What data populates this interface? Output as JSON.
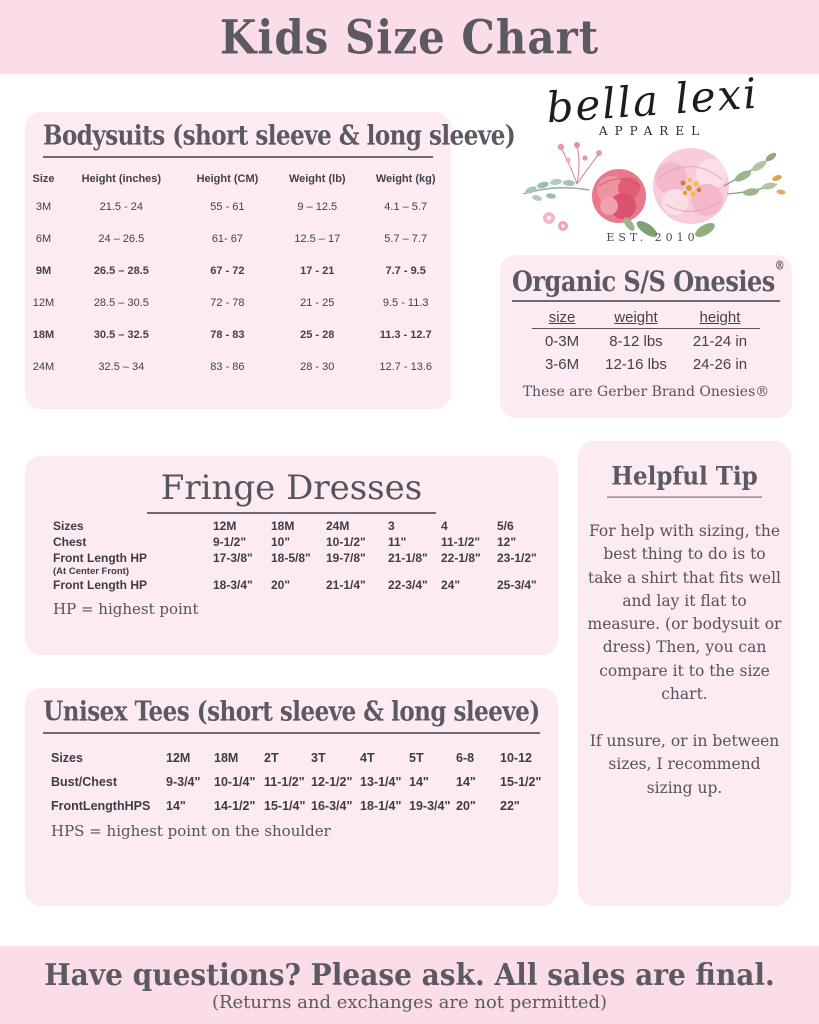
{
  "page": {
    "title": "Kids Size Chart",
    "footer_line1": "Have questions? Please ask. All sales are final.",
    "footer_line2": "(Returns and exchanges are not permitted)"
  },
  "brand": {
    "name": "bella lexi",
    "subtitle": "APPAREL",
    "established": "EST. 2010"
  },
  "colors": {
    "banner_pink": "#fbdde9",
    "panel_pink": "#fcebf2",
    "heading_gray": "#5b5961",
    "table_text": "#434149"
  },
  "bodysuits": {
    "title": "Bodysuits (short sleeve & long sleeve)",
    "headers": [
      "Size",
      "Height (inches)",
      "Height (CM)",
      "Weight (lb)",
      "Weight (kg)"
    ],
    "rows": [
      {
        "cells": [
          "3M",
          "21.5 - 24",
          "55 - 61",
          "9 – 12.5",
          "4.1 – 5.7"
        ],
        "bold": false
      },
      {
        "cells": [
          "6M",
          "24 – 26.5",
          "61- 67",
          "12.5 – 17",
          "5.7 – 7.7"
        ],
        "bold": false
      },
      {
        "cells": [
          "9M",
          "26.5 – 28.5",
          "67 - 72",
          "17 - 21",
          "7.7 - 9.5"
        ],
        "bold": true
      },
      {
        "cells": [
          "12M",
          "28.5 – 30.5",
          "72 - 78",
          "21 - 25",
          "9.5 - 11.3"
        ],
        "bold": false
      },
      {
        "cells": [
          "18M",
          "30.5 – 32.5",
          "78 - 83",
          "25 - 28",
          "11.3 - 12.7"
        ],
        "bold": true
      },
      {
        "cells": [
          "24M",
          "32.5 – 34",
          "83 - 86",
          "28 - 30",
          "12.7 - 13.6"
        ],
        "bold": false
      }
    ]
  },
  "onesies": {
    "title": "Organic S/S Onesies",
    "registered_mark": "®",
    "headers": [
      "size",
      "weight",
      "height"
    ],
    "rows": [
      [
        "0-3M",
        "8-12 lbs",
        "21-24 in"
      ],
      [
        "3-6M",
        "12-16 lbs",
        "24-26 in"
      ]
    ],
    "note": "These are Gerber Brand Onesies®"
  },
  "fringe": {
    "title": "Fringe Dresses",
    "rows": [
      {
        "label": "Sizes",
        "values": [
          "12M",
          "18M",
          "24M",
          "3",
          "4",
          "5/6"
        ],
        "small": false
      },
      {
        "label": "Chest",
        "values": [
          "9-1/2\"",
          "10\"",
          "10-1/2\"",
          "11\"",
          "11-1/2\"",
          "12\""
        ],
        "small": false
      },
      {
        "label": "Front Length HP",
        "values": [
          "17-3/8\"",
          "18-5/8\"",
          "19-7/8\"",
          "21-1/8\"",
          "22-1/8\"",
          "23-1/2\""
        ],
        "small": false
      },
      {
        "label": "(At Center Front)",
        "values": [
          "",
          "",
          "",
          "",
          "",
          ""
        ],
        "small": true
      },
      {
        "label": "Front Length HP",
        "values": [
          "18-3/4\"",
          "20\"",
          "21-1/4\"",
          "22-3/4\"",
          "24\"",
          "25-3/4\""
        ],
        "small": false
      }
    ],
    "note": "HP = highest point"
  },
  "tip": {
    "title": "Helpful Tip",
    "para1": "For help with sizing, the best thing to do is to take a shirt that fits well and lay it flat to measure. (or bodysuit or dress) Then, you can compare it to the size chart.",
    "para2": "If unsure, or in between sizes, I recommend sizing up."
  },
  "tees": {
    "title": "Unisex Tees (short sleeve & long sleeve)",
    "rows": [
      {
        "label": "Sizes",
        "values": [
          "12M",
          "18M",
          "2T",
          "3T",
          "4T",
          "5T",
          "6-8",
          "10-12"
        ]
      },
      {
        "label": "Bust/Chest",
        "values": [
          "9-3/4\"",
          "10-1/4\"",
          "11-1/2\"",
          "12-1/2\"",
          "13-1/4\"",
          "14\"",
          "14\"",
          "15-1/2\""
        ]
      },
      {
        "label": "FrontLengthHPS",
        "values": [
          "14\"",
          "14-1/2\"",
          "15-1/4\"",
          "16-3/4\"",
          "18-1/4\"",
          "19-3/4\"",
          "20\"",
          "22\""
        ]
      }
    ],
    "note": "HPS = highest point on the shoulder"
  }
}
